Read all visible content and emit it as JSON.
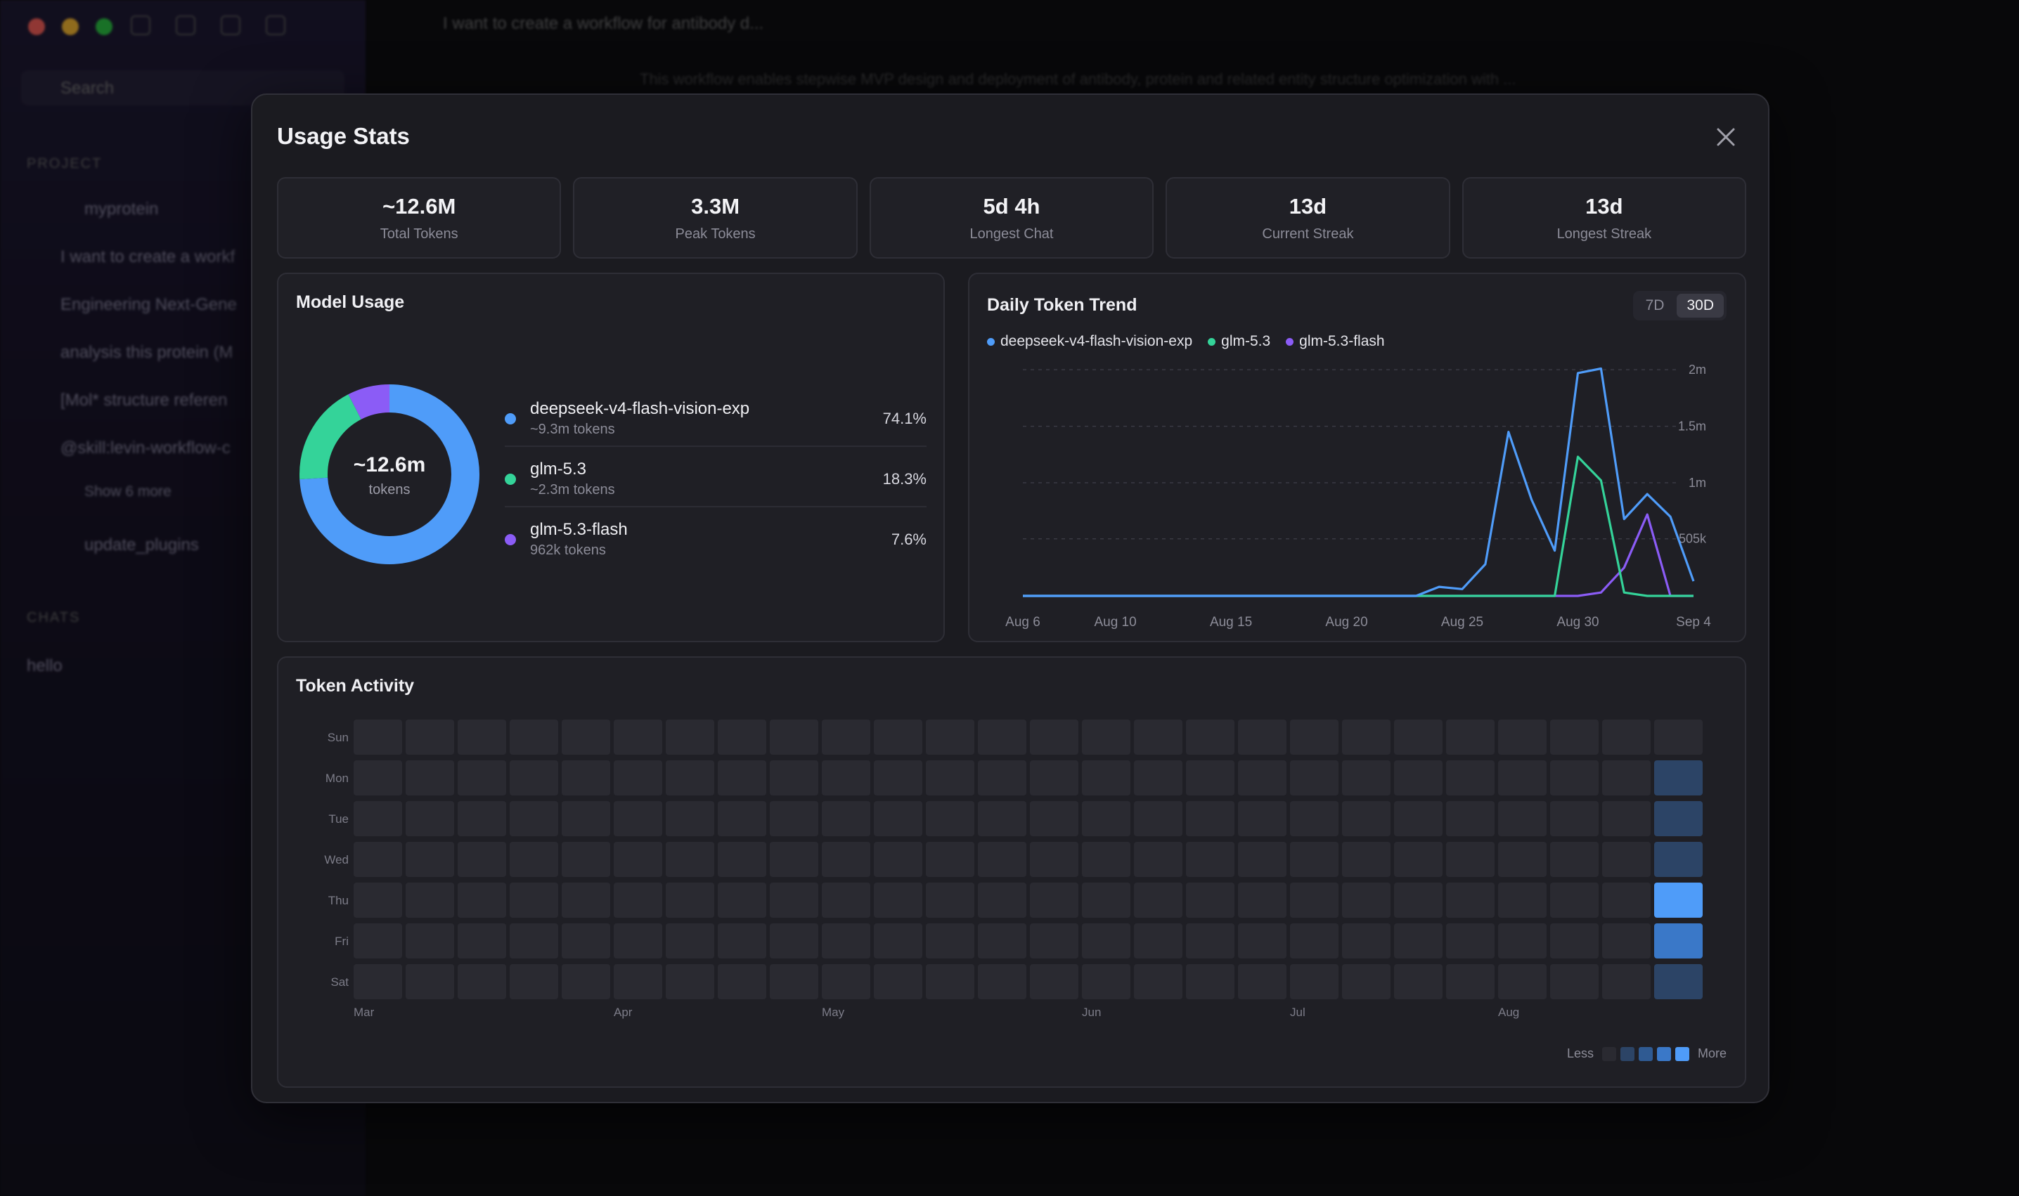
{
  "backdrop": {
    "sidebar": {
      "search_placeholder": "Search",
      "project_section": "PROJECT",
      "items": [
        "myprotein",
        "I want to create a workf",
        "Engineering Next-Gene",
        "analysis this protein (M",
        "[Mol* structure referen",
        "@skill:levin-workflow-c",
        "Show 6 more",
        "update_plugins"
      ],
      "chats_section": "CHATS",
      "chat_items": [
        "hello"
      ]
    },
    "main_title": "I want to create a workflow for antibody d...",
    "main_desc": "This workflow enables stepwise MVP design and deployment of antibody, protein and related entity structure optimization with ..."
  },
  "modal": {
    "title": "Usage Stats",
    "close_label": "Close",
    "stats": [
      {
        "value": "~12.6M",
        "label": "Total Tokens"
      },
      {
        "value": "3.3M",
        "label": "Peak Tokens"
      },
      {
        "value": "5d 4h",
        "label": "Longest Chat"
      },
      {
        "value": "13d",
        "label": "Current Streak"
      },
      {
        "value": "13d",
        "label": "Longest Streak"
      }
    ],
    "model_usage": {
      "title": "Model Usage",
      "center_value": "~12.6m",
      "center_label": "tokens",
      "models": [
        {
          "name": "deepseek-v4-flash-vision-exp",
          "tokens": "~9.3m tokens",
          "pct": "74.1%",
          "value": 74.1,
          "color": "#4f9cf9"
        },
        {
          "name": "glm-5.3",
          "tokens": "~2.3m tokens",
          "pct": "18.3%",
          "value": 18.3,
          "color": "#34d399"
        },
        {
          "name": "glm-5.3-flash",
          "tokens": "962k tokens",
          "pct": "7.6%",
          "value": 7.6,
          "color": "#8b5cf6"
        }
      ]
    },
    "trend": {
      "title": "Daily Token Trend",
      "range_options": [
        "7D",
        "30D"
      ],
      "active_range": "30D"
    },
    "activity": {
      "title": "Token Activity",
      "days": [
        "Sun",
        "Mon",
        "Tue",
        "Wed",
        "Thu",
        "Fri",
        "Sat"
      ],
      "months": [
        {
          "label": "Mar",
          "week": 0
        },
        {
          "label": "Apr",
          "week": 5
        },
        {
          "label": "May",
          "week": 9
        },
        {
          "label": "Jun",
          "week": 14
        },
        {
          "label": "Jul",
          "week": 18
        },
        {
          "label": "Aug",
          "week": 22
        }
      ],
      "weeks": 26,
      "active_cells": [
        {
          "week": 25,
          "day": 1,
          "level": 1
        },
        {
          "week": 25,
          "day": 2,
          "level": 1
        },
        {
          "week": 25,
          "day": 3,
          "level": 1
        },
        {
          "week": 25,
          "day": 4,
          "level": 4
        },
        {
          "week": 25,
          "day": 5,
          "level": 3
        },
        {
          "week": 25,
          "day": 6,
          "level": 1
        }
      ],
      "level_colors": [
        "#2a2a31",
        "#2c4466",
        "#2f5a92",
        "#3a78c8",
        "#4f9cf9"
      ],
      "legend_less": "Less",
      "legend_more": "More"
    }
  },
  "chart_data": {
    "type": "line",
    "title": "Daily Token Trend",
    "x": [
      "Aug 6",
      "Aug 7",
      "Aug 8",
      "Aug 9",
      "Aug 10",
      "Aug 11",
      "Aug 12",
      "Aug 13",
      "Aug 14",
      "Aug 15",
      "Aug 16",
      "Aug 17",
      "Aug 18",
      "Aug 19",
      "Aug 20",
      "Aug 21",
      "Aug 22",
      "Aug 23",
      "Aug 24",
      "Aug 25",
      "Aug 26",
      "Aug 27",
      "Aug 28",
      "Aug 29",
      "Aug 30",
      "Aug 31",
      "Sep 1",
      "Sep 2",
      "Sep 3",
      "Sep 4"
    ],
    "x_ticks": [
      "Aug 6",
      "Aug 10",
      "Aug 15",
      "Aug 20",
      "Aug 25",
      "Aug 30",
      "Sep 4"
    ],
    "y_ticks": [
      {
        "value": 2000000,
        "label": "2m"
      },
      {
        "value": 1500000,
        "label": "1.5m"
      },
      {
        "value": 1000000,
        "label": "1m"
      },
      {
        "value": 505000,
        "label": "505k"
      }
    ],
    "ylim": [
      0,
      2100000
    ],
    "grid": true,
    "legend": "top-left",
    "series": [
      {
        "name": "deepseek-v4-flash-vision-exp",
        "color": "#4f9cf9",
        "values": [
          0,
          0,
          0,
          0,
          0,
          0,
          0,
          0,
          0,
          0,
          0,
          0,
          0,
          0,
          0,
          0,
          0,
          0,
          80000,
          60000,
          280000,
          1450000,
          850000,
          400000,
          1970000,
          2010000,
          680000,
          900000,
          700000,
          130000
        ]
      },
      {
        "name": "glm-5.3",
        "color": "#34d399",
        "values": [
          0,
          0,
          0,
          0,
          0,
          0,
          0,
          0,
          0,
          0,
          0,
          0,
          0,
          0,
          0,
          0,
          0,
          0,
          0,
          0,
          0,
          0,
          0,
          0,
          1230000,
          1020000,
          30000,
          0,
          0,
          0
        ]
      },
      {
        "name": "glm-5.3-flash",
        "color": "#8b5cf6",
        "values": [
          0,
          0,
          0,
          0,
          0,
          0,
          0,
          0,
          0,
          0,
          0,
          0,
          0,
          0,
          0,
          0,
          0,
          0,
          0,
          0,
          0,
          0,
          0,
          0,
          0,
          30000,
          250000,
          720000,
          0,
          0
        ]
      }
    ]
  }
}
